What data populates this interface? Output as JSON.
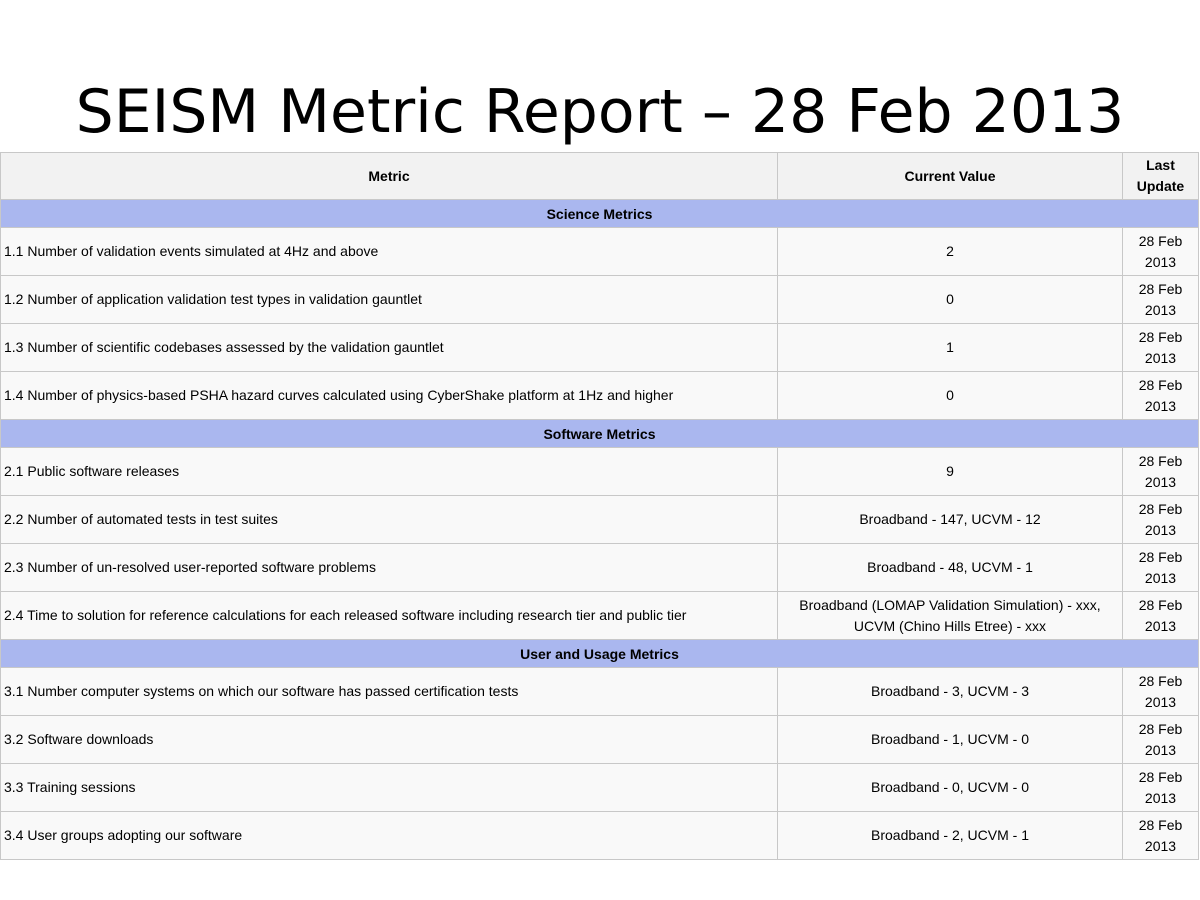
{
  "title": "SEISM Metric Report – 28 Feb 2013",
  "table": {
    "header": [
      "Metric",
      "Current Value",
      "Last Update"
    ],
    "sections": [
      {
        "name": "Science Metrics",
        "rows": [
          [
            "1.1 Number of validation events simulated at 4Hz and above",
            "2",
            "28 Feb 2013"
          ],
          [
            "1.2 Number of application validation test types in validation gauntlet",
            "0",
            "28 Feb 2013"
          ],
          [
            "1.3 Number of scientific codebases assessed by the validation gauntlet",
            "1",
            "28 Feb 2013"
          ],
          [
            "1.4 Number of physics-based PSHA hazard curves calculated using CyberShake platform at 1Hz and higher",
            "0",
            "28 Feb 2013"
          ]
        ]
      },
      {
        "name": "Software Metrics",
        "rows": [
          [
            "2.1 Public software releases",
            "9",
            "28 Feb 2013"
          ],
          [
            "2.2 Number of automated tests in test suites",
            "Broadband - 147, UCVM - 12",
            "28 Feb 2013"
          ],
          [
            "2.3 Number of un-resolved user-reported software problems",
            "Broadband - 48, UCVM - 1",
            "28 Feb 2013"
          ],
          [
            "2.4 Time to solution for reference calculations for each released software including research tier and public tier",
            "Broadband (LOMAP Validation Simulation) - xxx, UCVM (Chino Hills Etree) - xxx",
            "28 Feb 2013"
          ]
        ]
      },
      {
        "name": "User and Usage Metrics",
        "rows": [
          [
            "3.1 Number computer systems on which our software has passed certification tests",
            "Broadband - 3, UCVM - 3",
            "28 Feb 2013"
          ],
          [
            "3.2 Software downloads",
            "Broadband - 1, UCVM - 0",
            "28 Feb 2013"
          ],
          [
            "3.3 Training sessions",
            "Broadband - 0, UCVM - 0",
            "28 Feb 2013"
          ],
          [
            "3.4 User groups adopting our software",
            "Broadband - 2, UCVM - 1",
            "28 Feb 2013"
          ]
        ]
      }
    ]
  }
}
